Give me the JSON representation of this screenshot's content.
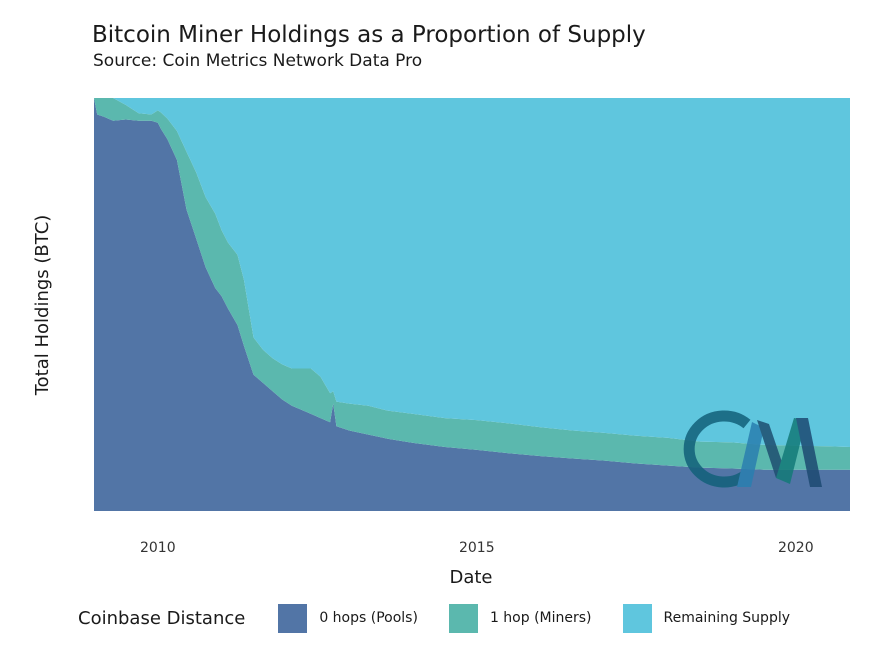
{
  "header": {
    "title": "Bitcoin Miner Holdings as a Proportion of Supply",
    "subtitle": "Source: Coin Metrics Network Data Pro"
  },
  "chart_data": {
    "type": "area",
    "stacking": "percent",
    "title": "Bitcoin Miner Holdings as a Proportion of Supply",
    "subtitle": "Source: Coin Metrics Network Data Pro",
    "xlabel": "Date",
    "ylabel": "Total Holdings (BTC)",
    "xlim": [
      2009.0,
      2020.85
    ],
    "ylim": [
      0,
      1
    ],
    "x_ticks": [
      2010,
      2015,
      2020
    ],
    "x_tick_labels": [
      "2010",
      "2015",
      "2020"
    ],
    "y_tick_labels": [],
    "grid": false,
    "legend": {
      "title": "Coinbase Distance",
      "position": "bottom"
    },
    "x": [
      2009.0,
      2009.05,
      2009.15,
      2009.3,
      2009.5,
      2009.7,
      2009.9,
      2010.0,
      2010.05,
      2010.15,
      2010.3,
      2010.45,
      2010.6,
      2010.75,
      2010.9,
      2011.0,
      2011.1,
      2011.25,
      2011.35,
      2011.5,
      2011.65,
      2011.8,
      2011.95,
      2012.1,
      2012.25,
      2012.4,
      2012.55,
      2012.7,
      2012.75,
      2012.8,
      2013.0,
      2013.3,
      2013.6,
      2014.0,
      2014.5,
      2015.0,
      2015.5,
      2016.0,
      2016.5,
      2017.0,
      2017.5,
      2018.0,
      2018.5,
      2019.0,
      2019.5,
      2020.0,
      2020.5,
      2020.85
    ],
    "series": [
      {
        "name": "0 hops (Pools)",
        "color": "#5275a6",
        "values": [
          1.0,
          0.96,
          0.955,
          0.945,
          0.948,
          0.945,
          0.945,
          0.94,
          0.925,
          0.9,
          0.85,
          0.73,
          0.66,
          0.59,
          0.54,
          0.52,
          0.49,
          0.45,
          0.4,
          0.33,
          0.31,
          0.29,
          0.27,
          0.255,
          0.245,
          0.235,
          0.225,
          0.215,
          0.26,
          0.205,
          0.195,
          0.185,
          0.175,
          0.165,
          0.155,
          0.148,
          0.14,
          0.133,
          0.127,
          0.122,
          0.115,
          0.11,
          0.105,
          0.103,
          0.1,
          0.1,
          0.1,
          0.1
        ]
      },
      {
        "name": "1 hop (Miners)",
        "color": "#5bb8ae",
        "values": [
          0.0,
          0.04,
          0.045,
          0.055,
          0.035,
          0.018,
          0.015,
          0.03,
          0.04,
          0.05,
          0.07,
          0.14,
          0.16,
          0.17,
          0.18,
          0.16,
          0.16,
          0.17,
          0.16,
          0.09,
          0.08,
          0.08,
          0.085,
          0.09,
          0.1,
          0.11,
          0.1,
          0.07,
          0.03,
          0.06,
          0.065,
          0.07,
          0.068,
          0.07,
          0.07,
          0.072,
          0.072,
          0.07,
          0.068,
          0.067,
          0.067,
          0.067,
          0.063,
          0.063,
          0.06,
          0.058,
          0.057,
          0.055
        ]
      },
      {
        "name": "Remaining Supply",
        "color": "#5fc6de",
        "values": [
          0.0,
          0.0,
          0.0,
          0.0,
          0.017,
          0.037,
          0.04,
          0.03,
          0.035,
          0.05,
          0.08,
          0.13,
          0.18,
          0.24,
          0.28,
          0.32,
          0.35,
          0.38,
          0.44,
          0.58,
          0.61,
          0.63,
          0.645,
          0.655,
          0.655,
          0.655,
          0.675,
          0.715,
          0.71,
          0.735,
          0.74,
          0.745,
          0.757,
          0.765,
          0.775,
          0.78,
          0.788,
          0.797,
          0.805,
          0.811,
          0.818,
          0.823,
          0.832,
          0.834,
          0.84,
          0.842,
          0.843,
          0.845
        ]
      }
    ]
  },
  "watermark": {
    "text": "CM"
  }
}
